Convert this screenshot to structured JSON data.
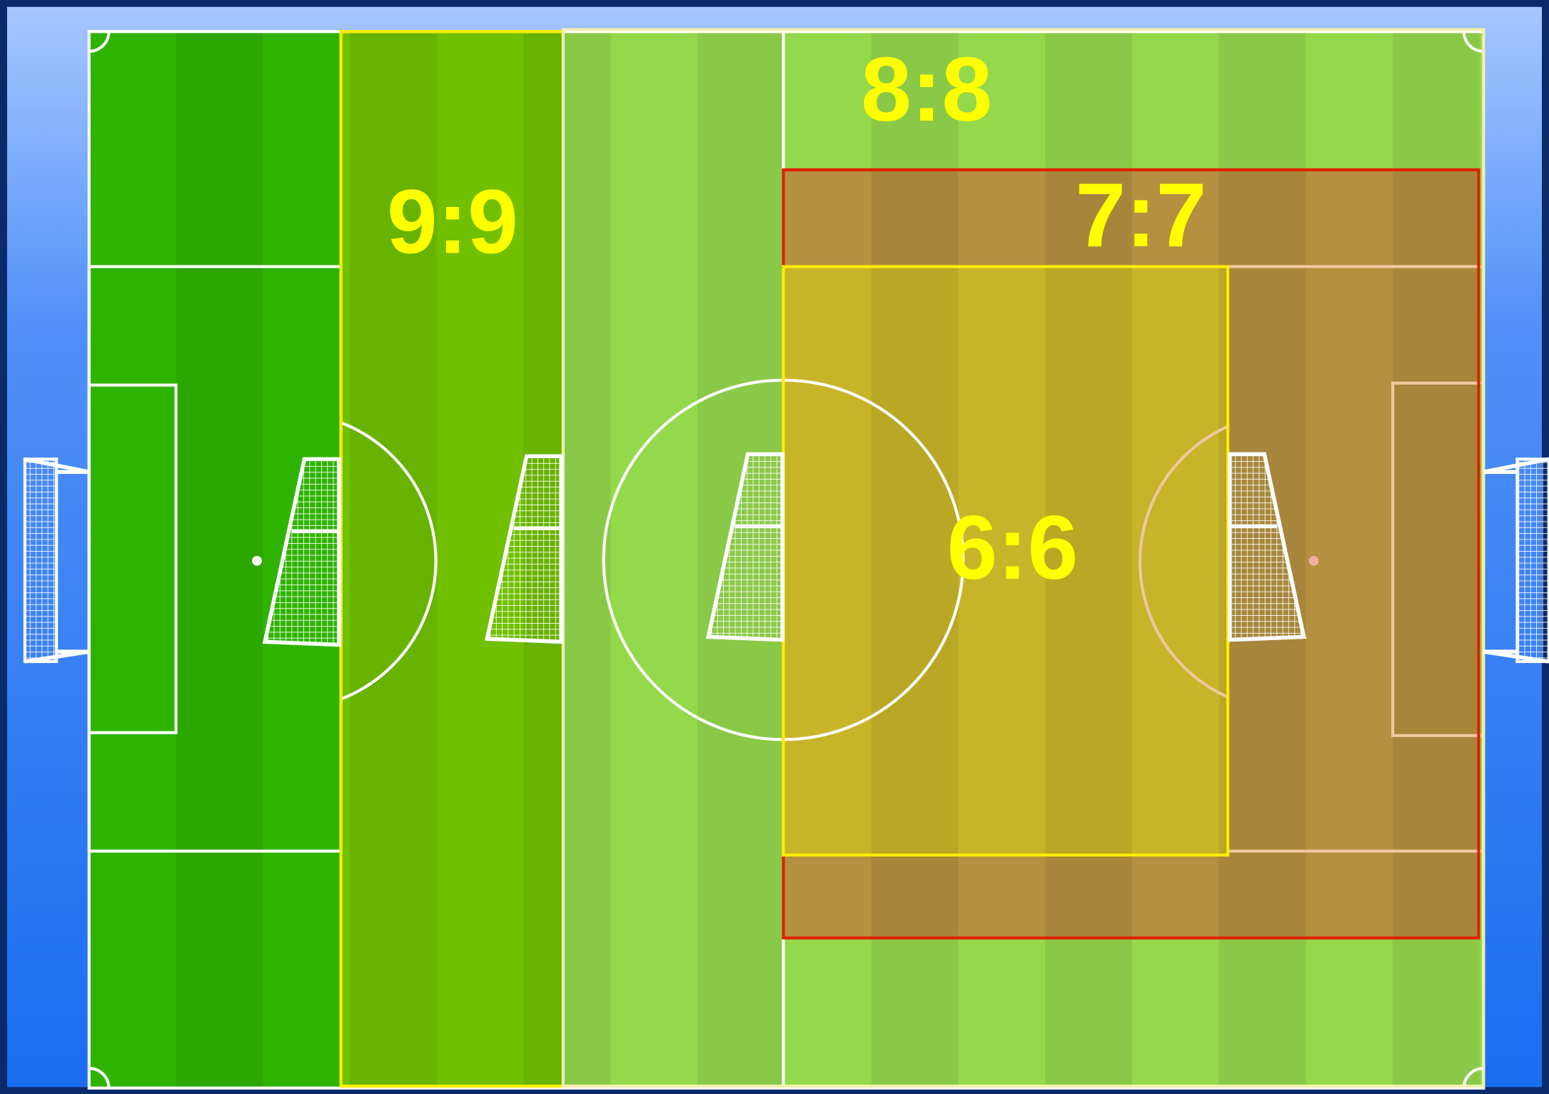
{
  "zones": [
    {
      "label": "9:9"
    },
    {
      "label": "8:8"
    },
    {
      "label": "7:7"
    },
    {
      "label": "6:6"
    }
  ]
}
